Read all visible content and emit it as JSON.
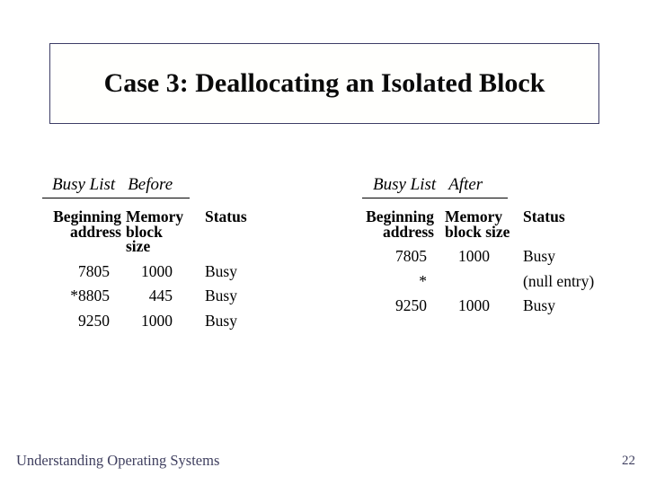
{
  "slide": {
    "title": "Case 3: Deallocating an Isolated Block",
    "footer": {
      "book_title": "Understanding Operating Systems",
      "page_number": "22"
    },
    "colors": {
      "title_box_border": "#3d3d66",
      "footer_text": "#3f3f5f",
      "body_text": "#000000",
      "background": "#ffffff"
    }
  },
  "tables": [
    {
      "caption": {
        "name": "Busy List",
        "state": "Before"
      },
      "headers": [
        {
          "line1": "Beginning",
          "line2": "address"
        },
        {
          "line1": "Memory",
          "line2": "block size"
        },
        {
          "line1": "Status",
          "line2": ""
        }
      ],
      "rows": [
        {
          "beginning_address": "7805",
          "memory_block_size": "1000",
          "status": "Busy"
        },
        {
          "beginning_address": "*8805",
          "memory_block_size": "445",
          "status": "Busy"
        },
        {
          "beginning_address": "9250",
          "memory_block_size": "1000",
          "status": "Busy"
        }
      ]
    },
    {
      "caption": {
        "name": "Busy List",
        "state": "After"
      },
      "headers": [
        {
          "line1": "Beginning",
          "line2": "address"
        },
        {
          "line1": "Memory",
          "line2": "block size"
        },
        {
          "line1": "Status",
          "line2": ""
        }
      ],
      "rows": [
        {
          "beginning_address": "7805",
          "memory_block_size": "1000",
          "status": "Busy"
        },
        {
          "beginning_address": "*",
          "memory_block_size": "",
          "status": "(null entry)"
        },
        {
          "beginning_address": "9250",
          "memory_block_size": "1000",
          "status": "Busy"
        }
      ]
    }
  ]
}
